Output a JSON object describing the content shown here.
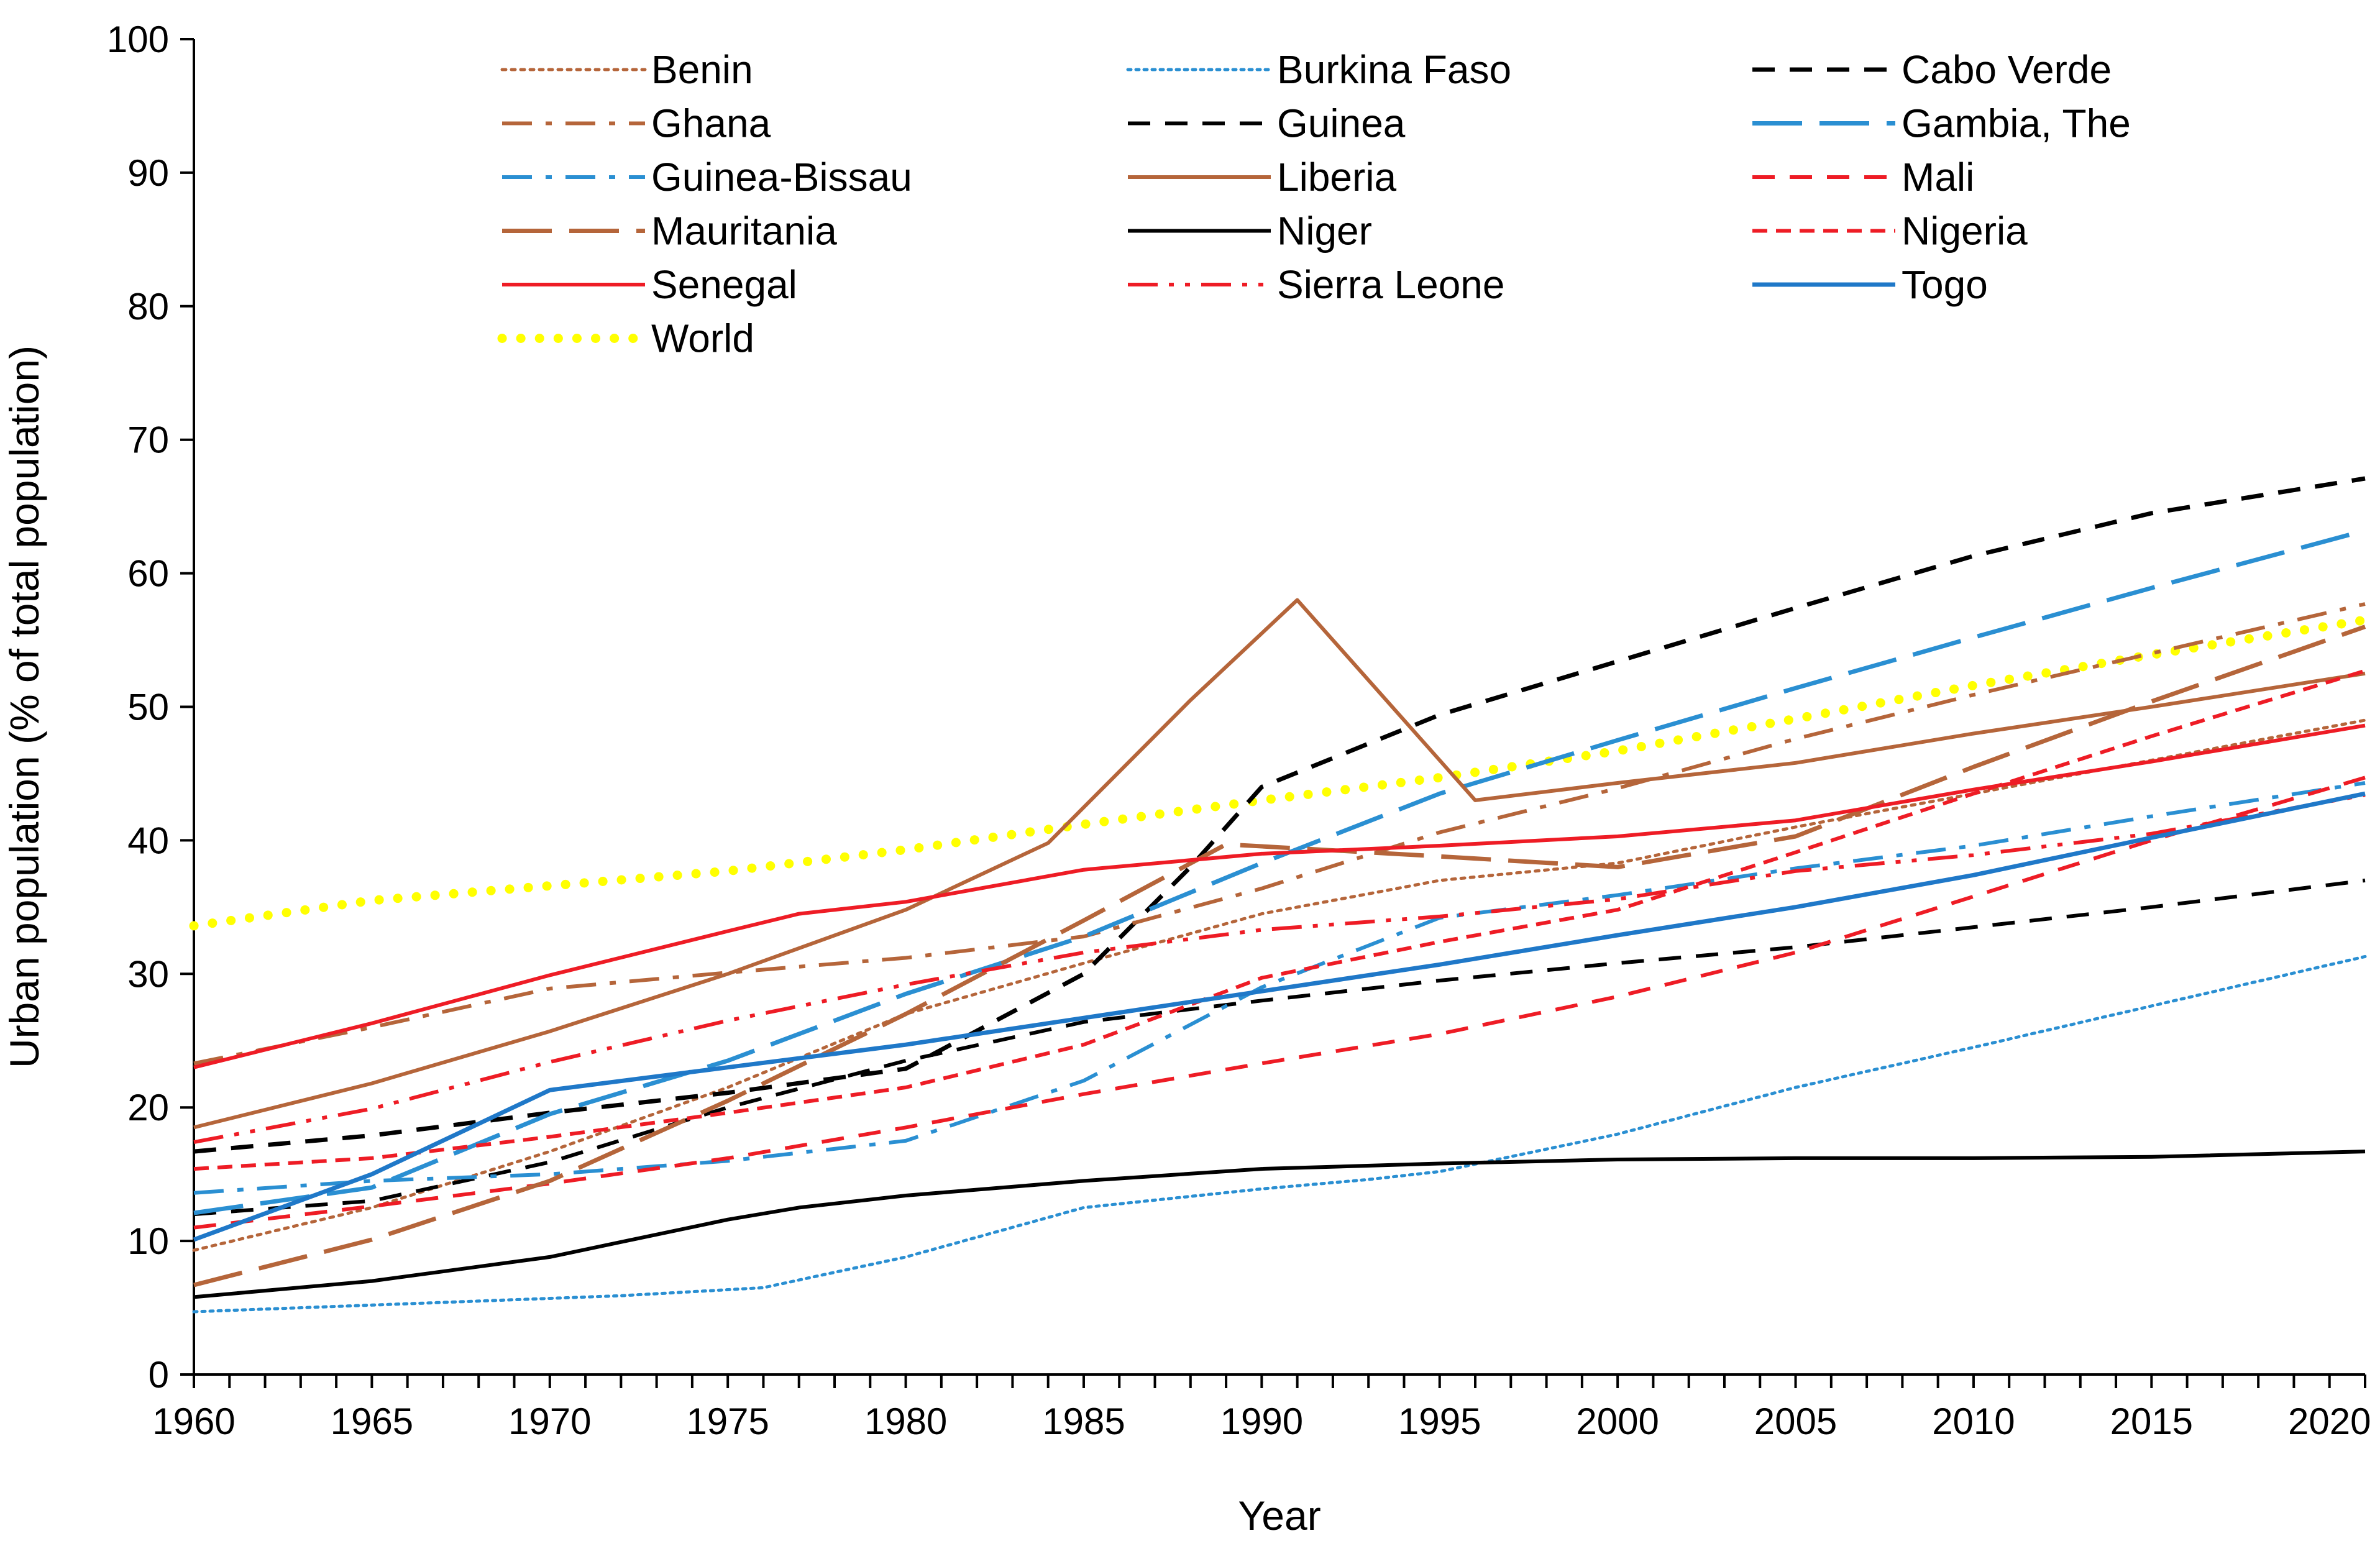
{
  "chart_data": {
    "type": "line",
    "title": "",
    "xlabel": "Year",
    "ylabel": "Urban population (% of total population)",
    "xlim": [
      1960,
      2021
    ],
    "ylim": [
      0,
      100
    ],
    "x_ticks": [
      1960,
      1965,
      1970,
      1975,
      1980,
      1985,
      1990,
      1995,
      2000,
      2005,
      2010,
      2015,
      2020
    ],
    "y_ticks": [
      0,
      10,
      20,
      30,
      40,
      50,
      60,
      70,
      80,
      90,
      100
    ],
    "x_tick_labels": [
      "1960",
      "1965",
      "1970",
      "1975",
      "1980",
      "1985",
      "1990",
      "1995",
      "2000",
      "2005",
      "2010",
      "2015",
      "2020"
    ],
    "y_tick_labels": [
      "0",
      "10",
      "20",
      "30",
      "40",
      "50",
      "60",
      "70",
      "80",
      "90",
      "100"
    ],
    "grid": false,
    "legend_position": "top",
    "series": [
      {
        "name": "Benin",
        "color": "#b5653a",
        "dash": "dot-fine",
        "width": 5,
        "points": [
          [
            1960,
            9.3
          ],
          [
            1965,
            12.5
          ],
          [
            1970,
            16.7
          ],
          [
            1975,
            21.5
          ],
          [
            1980,
            27.0
          ],
          [
            1985,
            30.8
          ],
          [
            1990,
            34.5
          ],
          [
            1995,
            37.0
          ],
          [
            2000,
            38.3
          ],
          [
            2005,
            41.0
          ],
          [
            2010,
            43.5
          ],
          [
            2015,
            46.0
          ],
          [
            2021,
            49.0
          ]
        ]
      },
      {
        "name": "Burkina Faso",
        "color": "#2a8fd2",
        "dash": "dot",
        "width": 5,
        "points": [
          [
            1960,
            4.7
          ],
          [
            1965,
            5.2
          ],
          [
            1970,
            5.7
          ],
          [
            1972,
            5.9
          ],
          [
            1976,
            6.5
          ],
          [
            1980,
            8.8
          ],
          [
            1985,
            12.5
          ],
          [
            1990,
            13.9
          ],
          [
            1993,
            14.6
          ],
          [
            1995,
            15.2
          ],
          [
            2000,
            18.0
          ],
          [
            2005,
            21.5
          ],
          [
            2010,
            24.5
          ],
          [
            2015,
            27.6
          ],
          [
            2021,
            31.3
          ]
        ]
      },
      {
        "name": "Cabo Verde",
        "color": "#000000",
        "dash": "dash-short",
        "width": 7,
        "points": [
          [
            1960,
            16.7
          ],
          [
            1965,
            17.9
          ],
          [
            1970,
            19.6
          ],
          [
            1975,
            21.1
          ],
          [
            1980,
            22.9
          ],
          [
            1985,
            30.0
          ],
          [
            1988,
            38.0
          ],
          [
            1990,
            44.0
          ],
          [
            1995,
            49.4
          ],
          [
            2000,
            53.4
          ],
          [
            2005,
            57.4
          ],
          [
            2010,
            61.3
          ],
          [
            2015,
            64.5
          ],
          [
            2021,
            67.1
          ]
        ]
      },
      {
        "name": "Ghana",
        "color": "#b5653a",
        "dash": "dash-dot",
        "width": 6,
        "points": [
          [
            1960,
            23.3
          ],
          [
            1965,
            26.0
          ],
          [
            1970,
            28.9
          ],
          [
            1975,
            30.1
          ],
          [
            1980,
            31.2
          ],
          [
            1985,
            32.8
          ],
          [
            1990,
            36.4
          ],
          [
            1995,
            40.6
          ],
          [
            2000,
            43.9
          ],
          [
            2005,
            47.6
          ],
          [
            2010,
            50.9
          ],
          [
            2015,
            54.0
          ],
          [
            2021,
            57.7
          ]
        ]
      },
      {
        "name": "Guinea",
        "color": "#000000",
        "dash": "dash-short",
        "width": 6,
        "points": [
          [
            1960,
            12.0
          ],
          [
            1965,
            13.0
          ],
          [
            1970,
            15.9
          ],
          [
            1975,
            20.0
          ],
          [
            1980,
            23.5
          ],
          [
            1985,
            26.4
          ],
          [
            1990,
            28.0
          ],
          [
            1995,
            29.5
          ],
          [
            2000,
            30.8
          ],
          [
            2005,
            32.0
          ],
          [
            2010,
            33.5
          ],
          [
            2015,
            35.0
          ],
          [
            2021,
            37.0
          ]
        ]
      },
      {
        "name": "Gambia, The",
        "color": "#2a8fd2",
        "dash": "dash-long",
        "width": 7,
        "points": [
          [
            1960,
            12.1
          ],
          [
            1965,
            14.0
          ],
          [
            1970,
            19.5
          ],
          [
            1975,
            23.5
          ],
          [
            1980,
            28.5
          ],
          [
            1985,
            32.8
          ],
          [
            1990,
            38.3
          ],
          [
            1995,
            43.5
          ],
          [
            2000,
            47.5
          ],
          [
            2005,
            51.4
          ],
          [
            2010,
            55.2
          ],
          [
            2015,
            58.9
          ],
          [
            2021,
            63.2
          ]
        ]
      },
      {
        "name": "Guinea-Bissau",
        "color": "#2a8fd2",
        "dash": "dash-dot",
        "width": 6,
        "points": [
          [
            1960,
            13.6
          ],
          [
            1965,
            14.5
          ],
          [
            1970,
            15.0
          ],
          [
            1975,
            16.0
          ],
          [
            1980,
            17.5
          ],
          [
            1985,
            22.0
          ],
          [
            1990,
            29.0
          ],
          [
            1995,
            34.2
          ],
          [
            2000,
            35.9
          ],
          [
            2005,
            37.9
          ],
          [
            2010,
            39.6
          ],
          [
            2015,
            41.8
          ],
          [
            2021,
            44.3
          ]
        ]
      },
      {
        "name": "Liberia",
        "color": "#b5653a",
        "dash": "solid",
        "width": 6,
        "points": [
          [
            1960,
            18.5
          ],
          [
            1965,
            21.8
          ],
          [
            1970,
            25.7
          ],
          [
            1975,
            30.0
          ],
          [
            1980,
            34.8
          ],
          [
            1984,
            39.8
          ],
          [
            1988,
            50.5
          ],
          [
            1991,
            58.0
          ],
          [
            1996,
            43.0
          ],
          [
            2000,
            44.3
          ],
          [
            2005,
            45.8
          ],
          [
            2010,
            48.0
          ],
          [
            2015,
            50.0
          ],
          [
            2021,
            52.5
          ]
        ]
      },
      {
        "name": "Mali",
        "color": "#ee1c25",
        "dash": "dash-short",
        "width": 6,
        "points": [
          [
            1960,
            11.0
          ],
          [
            1965,
            12.6
          ],
          [
            1970,
            14.3
          ],
          [
            1975,
            16.2
          ],
          [
            1980,
            18.5
          ],
          [
            1985,
            21.0
          ],
          [
            1990,
            23.3
          ],
          [
            1995,
            25.5
          ],
          [
            2000,
            28.3
          ],
          [
            2005,
            31.6
          ],
          [
            2010,
            35.8
          ],
          [
            2015,
            40.0
          ],
          [
            2021,
            44.7
          ]
        ]
      },
      {
        "name": "Mauritania",
        "color": "#b5653a",
        "dash": "dash-long",
        "width": 7,
        "points": [
          [
            1960,
            6.7
          ],
          [
            1965,
            10.1
          ],
          [
            1970,
            14.5
          ],
          [
            1975,
            20.5
          ],
          [
            1980,
            27.0
          ],
          [
            1985,
            34.0
          ],
          [
            1989,
            39.7
          ],
          [
            1995,
            38.8
          ],
          [
            2000,
            38.0
          ],
          [
            2005,
            40.3
          ],
          [
            2010,
            45.5
          ],
          [
            2015,
            50.4
          ],
          [
            2021,
            56.0
          ]
        ]
      },
      {
        "name": "Niger",
        "color": "#000000",
        "dash": "solid",
        "width": 6,
        "points": [
          [
            1960,
            5.8
          ],
          [
            1965,
            7.0
          ],
          [
            1970,
            8.8
          ],
          [
            1975,
            11.6
          ],
          [
            1977,
            12.5
          ],
          [
            1980,
            13.4
          ],
          [
            1985,
            14.5
          ],
          [
            1990,
            15.4
          ],
          [
            1995,
            15.8
          ],
          [
            2000,
            16.1
          ],
          [
            2005,
            16.2
          ],
          [
            2010,
            16.2
          ],
          [
            2015,
            16.3
          ],
          [
            2021,
            16.7
          ]
        ]
      },
      {
        "name": "Nigeria",
        "color": "#ee1c25",
        "dash": "dash-fine",
        "width": 6,
        "points": [
          [
            1960,
            15.4
          ],
          [
            1965,
            16.2
          ],
          [
            1970,
            17.8
          ],
          [
            1975,
            19.6
          ],
          [
            1980,
            21.5
          ],
          [
            1985,
            24.7
          ],
          [
            1990,
            29.7
          ],
          [
            1995,
            32.4
          ],
          [
            2000,
            34.8
          ],
          [
            2005,
            39.1
          ],
          [
            2010,
            43.5
          ],
          [
            2015,
            47.8
          ],
          [
            2021,
            52.7
          ]
        ]
      },
      {
        "name": "Senegal",
        "color": "#ee1c25",
        "dash": "solid",
        "width": 6,
        "points": [
          [
            1960,
            23.0
          ],
          [
            1965,
            26.3
          ],
          [
            1970,
            29.9
          ],
          [
            1975,
            33.2
          ],
          [
            1977,
            34.5
          ],
          [
            1980,
            35.4
          ],
          [
            1985,
            37.8
          ],
          [
            1990,
            39.0
          ],
          [
            1995,
            39.6
          ],
          [
            2000,
            40.3
          ],
          [
            2005,
            41.5
          ],
          [
            2010,
            43.8
          ],
          [
            2015,
            45.9
          ],
          [
            2021,
            48.6
          ]
        ]
      },
      {
        "name": "Sierra Leone",
        "color": "#ee1c25",
        "dash": "dash-dot-dot",
        "width": 6,
        "points": [
          [
            1960,
            17.4
          ],
          [
            1965,
            19.9
          ],
          [
            1970,
            23.4
          ],
          [
            1975,
            26.5
          ],
          [
            1980,
            29.2
          ],
          [
            1985,
            31.6
          ],
          [
            1990,
            33.3
          ],
          [
            1995,
            34.3
          ],
          [
            2000,
            35.6
          ],
          [
            2005,
            37.7
          ],
          [
            2010,
            38.9
          ],
          [
            2015,
            40.5
          ],
          [
            2021,
            43.4
          ]
        ]
      },
      {
        "name": "Togo",
        "color": "#1f78c8",
        "dash": "solid",
        "width": 7,
        "points": [
          [
            1960,
            10.1
          ],
          [
            1965,
            15.0
          ],
          [
            1970,
            21.3
          ],
          [
            1975,
            23.0
          ],
          [
            1980,
            24.7
          ],
          [
            1985,
            26.7
          ],
          [
            1990,
            28.7
          ],
          [
            1995,
            30.7
          ],
          [
            2000,
            32.9
          ],
          [
            2005,
            35.0
          ],
          [
            2010,
            37.4
          ],
          [
            2015,
            40.2
          ],
          [
            2021,
            43.5
          ]
        ]
      },
      {
        "name": "World",
        "color": "#ffff00",
        "dash": "dots-big",
        "width": 15,
        "points": [
          [
            1960,
            33.6
          ],
          [
            1965,
            35.5
          ],
          [
            1970,
            36.6
          ],
          [
            1975,
            37.7
          ],
          [
            1980,
            39.3
          ],
          [
            1985,
            41.2
          ],
          [
            1990,
            43.0
          ],
          [
            1995,
            44.7
          ],
          [
            2000,
            46.7
          ],
          [
            2005,
            49.1
          ],
          [
            2010,
            51.6
          ],
          [
            2015,
            53.9
          ],
          [
            2021,
            56.5
          ]
        ]
      }
    ]
  }
}
